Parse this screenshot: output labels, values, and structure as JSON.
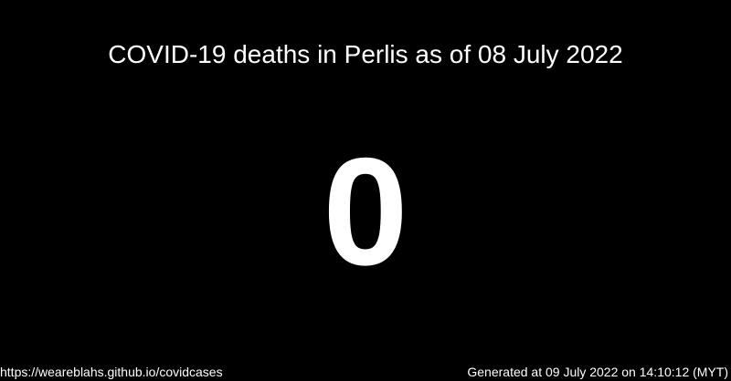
{
  "card": {
    "title": "COVID-19 deaths in Perlis as of 08 July 2022",
    "count": "0"
  },
  "footer": {
    "link_text": "https://weareblahs.github.io/covidcases",
    "generated_text": "Generated at 09 July 2022 on 14:10:12 (MYT)"
  },
  "colors": {
    "background": "#000000",
    "text": "#ffffff"
  }
}
